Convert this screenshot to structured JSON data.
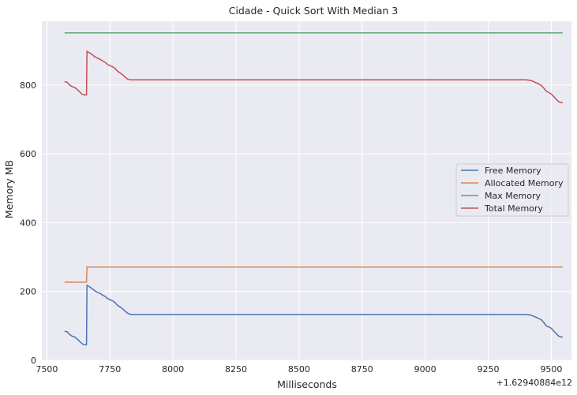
{
  "chart_data": {
    "type": "line",
    "title": "Cidade - Quick Sort With Median 3",
    "xlabel": "Milliseconds",
    "ylabel": "Memory MB",
    "x_offset_label": "+1.62940884e12",
    "xlim": [
      7480,
      9580
    ],
    "ylim": [
      0,
      985
    ],
    "x_ticks": [
      7500,
      7750,
      8000,
      8250,
      8500,
      8750,
      9000,
      9250,
      9500
    ],
    "x_tick_labels": [
      "7500",
      "7750",
      "8000",
      "8250",
      "8500",
      "8750",
      "9000",
      "9250",
      "9500"
    ],
    "y_ticks": [
      0,
      200,
      400,
      600,
      800
    ],
    "y_tick_labels": [
      "0",
      "200",
      "400",
      "600",
      "800"
    ],
    "grid": true,
    "legend_position": "center-right",
    "series": [
      {
        "name": "Free Memory",
        "color": "#4c72b0",
        "points": [
          [
            7570,
            84
          ],
          [
            7580,
            83
          ],
          [
            7590,
            75
          ],
          [
            7600,
            70
          ],
          [
            7610,
            68
          ],
          [
            7620,
            62
          ],
          [
            7630,
            55
          ],
          [
            7640,
            48
          ],
          [
            7650,
            45
          ],
          [
            7655,
            45
          ],
          [
            7657,
            45
          ],
          [
            7659,
            218
          ],
          [
            7670,
            213
          ],
          [
            7680,
            208
          ],
          [
            7690,
            202
          ],
          [
            7700,
            198
          ],
          [
            7710,
            195
          ],
          [
            7720,
            190
          ],
          [
            7730,
            186
          ],
          [
            7740,
            180
          ],
          [
            7750,
            176
          ],
          [
            7760,
            173
          ],
          [
            7770,
            168
          ],
          [
            7780,
            160
          ],
          [
            7790,
            155
          ],
          [
            7800,
            150
          ],
          [
            7810,
            143
          ],
          [
            7820,
            137
          ],
          [
            7830,
            134
          ],
          [
            7840,
            133
          ],
          [
            8000,
            133
          ],
          [
            8500,
            133
          ],
          [
            9000,
            133
          ],
          [
            9400,
            133
          ],
          [
            9420,
            131
          ],
          [
            9440,
            125
          ],
          [
            9460,
            118
          ],
          [
            9470,
            110
          ],
          [
            9480,
            100
          ],
          [
            9490,
            97
          ],
          [
            9500,
            93
          ],
          [
            9510,
            85
          ],
          [
            9520,
            77
          ],
          [
            9530,
            70
          ],
          [
            9545,
            67
          ]
        ]
      },
      {
        "name": "Allocated Memory",
        "color": "#dd8452",
        "points": [
          [
            7570,
            227
          ],
          [
            7655,
            227
          ],
          [
            7657,
            227
          ],
          [
            7659,
            271
          ],
          [
            9545,
            271
          ]
        ]
      },
      {
        "name": "Max Memory",
        "color": "#55a868",
        "points": [
          [
            7570,
            951
          ],
          [
            9545,
            951
          ]
        ]
      },
      {
        "name": "Total Memory",
        "color": "#c44e52",
        "points": [
          [
            7570,
            810
          ],
          [
            7580,
            808
          ],
          [
            7590,
            800
          ],
          [
            7600,
            795
          ],
          [
            7610,
            793
          ],
          [
            7620,
            787
          ],
          [
            7630,
            780
          ],
          [
            7640,
            773
          ],
          [
            7650,
            771
          ],
          [
            7655,
            771
          ],
          [
            7657,
            771
          ],
          [
            7659,
            898
          ],
          [
            7670,
            893
          ],
          [
            7680,
            888
          ],
          [
            7690,
            882
          ],
          [
            7700,
            878
          ],
          [
            7710,
            875
          ],
          [
            7720,
            870
          ],
          [
            7730,
            866
          ],
          [
            7740,
            860
          ],
          [
            7750,
            856
          ],
          [
            7760,
            853
          ],
          [
            7770,
            848
          ],
          [
            7780,
            840
          ],
          [
            7790,
            835
          ],
          [
            7800,
            830
          ],
          [
            7810,
            823
          ],
          [
            7820,
            817
          ],
          [
            7830,
            815
          ],
          [
            7840,
            815
          ],
          [
            8000,
            815
          ],
          [
            8500,
            815
          ],
          [
            9000,
            815
          ],
          [
            9400,
            815
          ],
          [
            9420,
            813
          ],
          [
            9440,
            806
          ],
          [
            9460,
            799
          ],
          [
            9470,
            791
          ],
          [
            9480,
            782
          ],
          [
            9490,
            778
          ],
          [
            9500,
            774
          ],
          [
            9510,
            766
          ],
          [
            9520,
            758
          ],
          [
            9530,
            751
          ],
          [
            9545,
            748
          ]
        ]
      }
    ]
  }
}
